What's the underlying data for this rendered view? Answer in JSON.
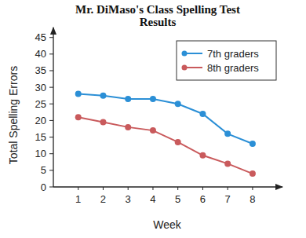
{
  "chart_data": {
    "type": "line",
    "title": "Mr. DiMaso's Class Spelling Test Results",
    "x_label": "Week",
    "y_label": "Total Spelling Errors",
    "x": [
      1,
      2,
      3,
      4,
      5,
      6,
      7,
      8
    ],
    "series": [
      {
        "name": "7th graders",
        "color": "#2b8fd6",
        "marker": "circle",
        "values": [
          28,
          27.5,
          26.5,
          26.5,
          25,
          22,
          16,
          13
        ]
      },
      {
        "name": "8th graders",
        "color": "#c95a5c",
        "marker": "circle",
        "values": [
          21,
          19.5,
          18,
          17,
          13.5,
          9.5,
          7,
          4
        ]
      }
    ],
    "xlim": [
      0,
      9.2
    ],
    "xticks": [
      1,
      2,
      3,
      4,
      5,
      6,
      7,
      8
    ],
    "ylim": [
      0,
      48
    ],
    "yticks": [
      0,
      5,
      10,
      15,
      20,
      25,
      30,
      35,
      40,
      45
    ],
    "grid": false,
    "legend": "upper right"
  }
}
